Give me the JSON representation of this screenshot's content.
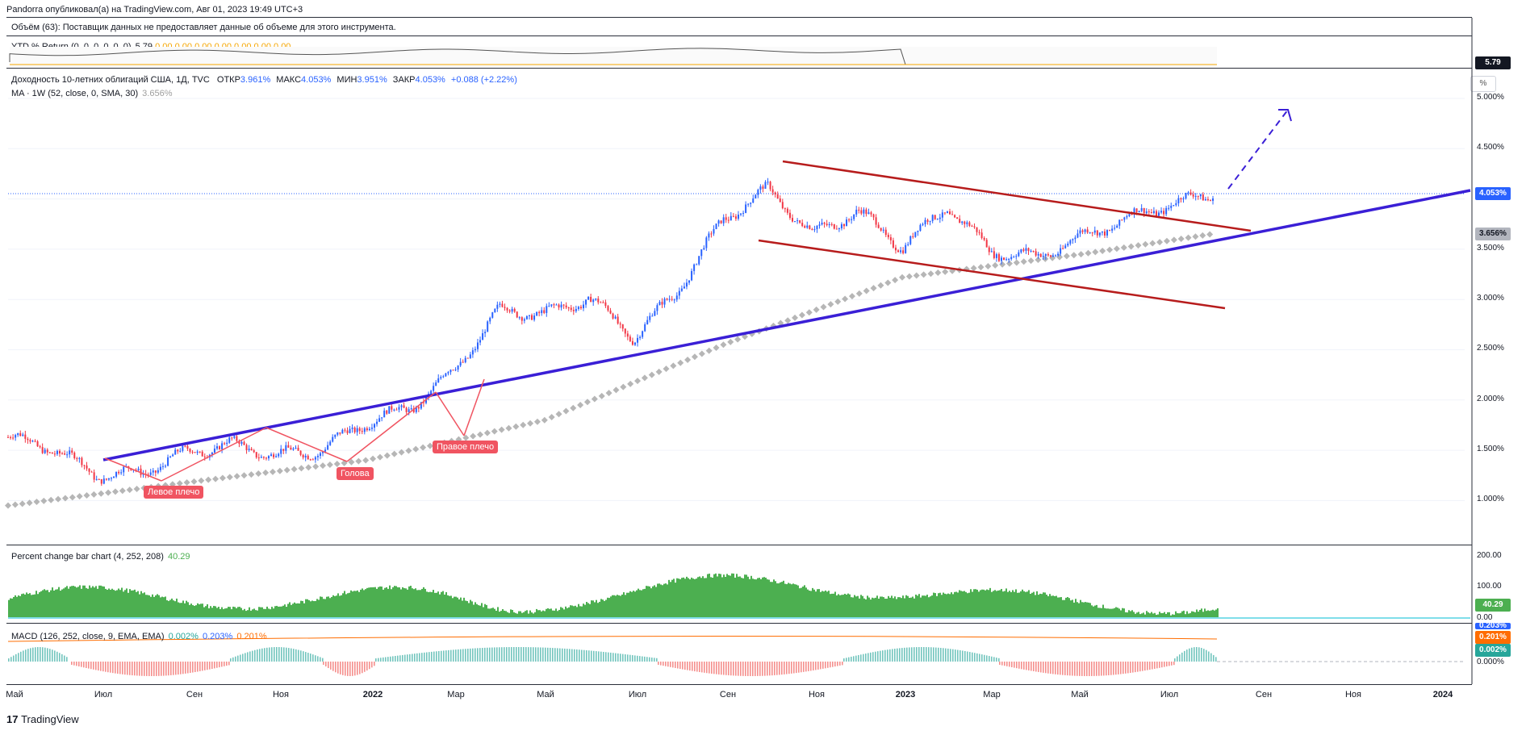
{
  "header": {
    "published_line": "Pandorra опубликовал(а) на TradingView.com, Авг 01, 2023 19:49 UTC+3"
  },
  "volume_pane": {
    "legend": "Объём (63): Поставщик данных не предоставляет данные об объеме для этого инструмента."
  },
  "ytd_pane": {
    "title": "YTD % Return (0, 0, 0, 0, 0, 0)",
    "value": "5.79",
    "zeros": [
      "0.00",
      "0.00",
      "0.00",
      "0.00",
      "0.00",
      "0.00",
      "0.00"
    ],
    "badge": "5.79"
  },
  "main_pane": {
    "symbol_title": "Доходность 10-летних облигаций США, 1Д, TVC",
    "ohlc": {
      "open_label": "ОТКР",
      "open": "3.961%",
      "high_label": "МАКС",
      "high": "4.053%",
      "low_label": "МИН",
      "low": "3.951%",
      "close_label": "ЗАКР",
      "close": "4.053%",
      "change": "+0.088 (+2.22%)"
    },
    "ma_legend": "MA · 1W (52, close, 0, SMA, 30)",
    "ma_value": "3.656%",
    "scale_button": "%",
    "last_price_badge": "4.053%",
    "ma_badge": "3.656%",
    "y_ticks": [
      "5.000%",
      "4.500%",
      "4.000%",
      "3.500%",
      "3.000%",
      "2.500%",
      "2.000%",
      "1.500%",
      "1.000%"
    ],
    "annotations": [
      "Левое плечо",
      "Голова",
      "Правое плечо"
    ]
  },
  "pct_change_pane": {
    "legend": "Percent change bar chart (4, 252, 208)",
    "value": "40.29",
    "badge": "40.29",
    "y_ticks": [
      "200.00",
      "100.00",
      "0.00"
    ]
  },
  "macd_pane": {
    "legend": "MACD (126, 252, close, 9, EMA, EMA)",
    "v1": "0.002%",
    "v2": "0.203%",
    "v3": "0.201%",
    "badges": [
      "0.203%",
      "0.201%",
      "0.002%"
    ],
    "y_tick": "0.000%"
  },
  "x_axis": {
    "labels": [
      "Май",
      "Июл",
      "Сен",
      "Ноя",
      "2022",
      "Мар",
      "Май",
      "Июл",
      "Сен",
      "Ноя",
      "2023",
      "Мар",
      "Май",
      "Июл",
      "Сен",
      "Ноя",
      "2024"
    ]
  },
  "footer": {
    "brand": "TradingView"
  },
  "chart_data": {
    "type": "line",
    "title": "Доходность 10-летних облигаций США, 1Д, TVC",
    "series": [
      {
        "name": "Доходность 10-летних облигаций США",
        "x": [
          "2021-05",
          "2021-06",
          "2021-07",
          "2021-08",
          "2021-09",
          "2021-10",
          "2021-11",
          "2021-12",
          "2022-01",
          "2022-02",
          "2022-03",
          "2022-04",
          "2022-05",
          "2022-06",
          "2022-07",
          "2022-08",
          "2022-09",
          "2022-10",
          "2022-11",
          "2022-12",
          "2023-01",
          "2023-02",
          "2023-03",
          "2023-04",
          "2023-05",
          "2023-06",
          "2023-07",
          "2023-08"
        ],
        "values": [
          1.63,
          1.52,
          1.25,
          1.28,
          1.48,
          1.56,
          1.45,
          1.5,
          1.78,
          1.92,
          2.3,
          2.9,
          2.85,
          3.02,
          2.62,
          3.1,
          3.8,
          4.1,
          3.65,
          3.88,
          3.52,
          3.92,
          3.48,
          3.42,
          3.62,
          3.8,
          3.95,
          4.05
        ]
      },
      {
        "name": "MA · 1W (52, close, 0, SMA, 30)",
        "x": [
          "2021-05",
          "2021-09",
          "2022-01",
          "2022-05",
          "2022-09",
          "2023-01",
          "2023-05",
          "2023-08"
        ],
        "values": [
          0.95,
          1.18,
          1.4,
          1.8,
          2.55,
          3.22,
          3.45,
          3.656
        ]
      }
    ],
    "y_unit": "%",
    "ylim": [
      0.6,
      5.1
    ],
    "last_value": 4.053,
    "pct_change_last": 40.29,
    "macd": {
      "macd": 0.203,
      "signal": 0.201,
      "hist": 0.002
    }
  },
  "colors": {
    "up": "#2962ff",
    "down": "#f23645",
    "trendline": "#3a1fd6",
    "channel": "#b71c1c",
    "ma": "#9e9e9e",
    "pct_bars": "#4caf50",
    "macd_up": "#26a69a",
    "macd_down": "#ef5350"
  }
}
